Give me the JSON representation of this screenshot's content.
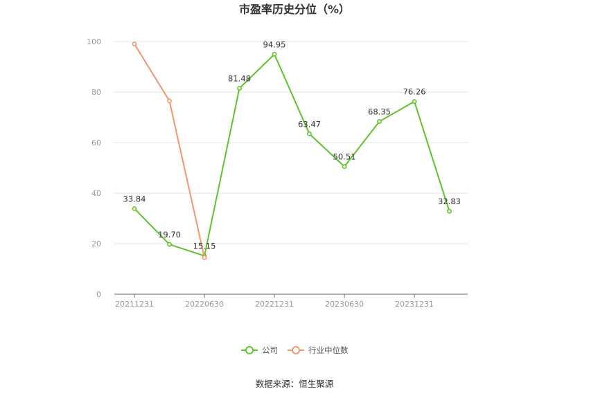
{
  "chart_data": {
    "type": "line",
    "title": "市盈率历史分位（%）",
    "ylim": [
      0,
      100
    ],
    "y_ticks": [
      0,
      20,
      40,
      60,
      80,
      100
    ],
    "periods": [
      "20211231",
      "20220331",
      "20220630",
      "20220930",
      "20221231",
      "20230331",
      "20230630",
      "20230930",
      "20231231",
      "20240331"
    ],
    "x_tick_labels": [
      "20211231",
      "",
      "20220630",
      "",
      "20221231",
      "",
      "20230630",
      "",
      "20231231",
      ""
    ],
    "grid": true,
    "legend_position": "bottom",
    "series": [
      {
        "name": "公司",
        "color": "#5cc42a",
        "values": [
          33.84,
          19.7,
          15.15,
          81.48,
          94.95,
          63.47,
          50.51,
          68.35,
          76.26,
          32.83
        ],
        "labels": [
          "33.84",
          "19.70",
          "15.15",
          "81.48",
          "94.95",
          "63.47",
          "50.51",
          "68.35",
          "76.26",
          "32.83"
        ]
      },
      {
        "name": "行业中位数",
        "color": "#f4946c",
        "values": [
          99.0,
          76.5,
          14.5,
          null,
          null,
          null,
          null,
          null,
          null,
          null
        ],
        "labels": []
      }
    ]
  },
  "source": "数据来源：恒生聚源"
}
